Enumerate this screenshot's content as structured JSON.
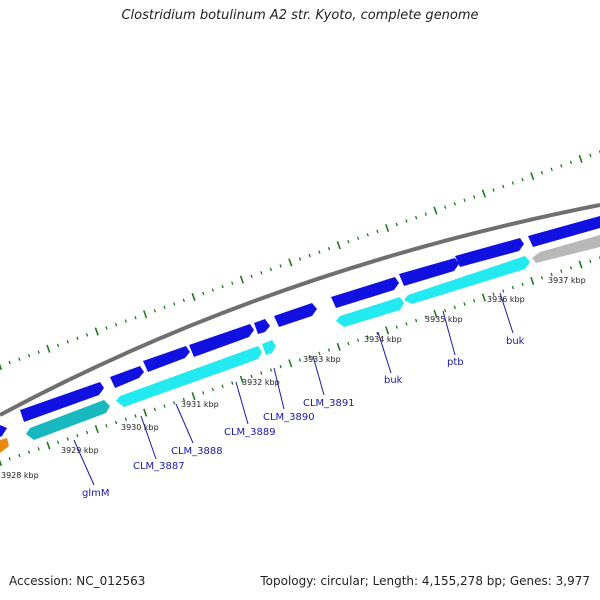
{
  "title": "Clostridium botulinum A2 str. Kyoto, complete genome",
  "footer": {
    "accession": "Accession: NC_012563",
    "summary": "Topology: circular; Length: 4,155,278 bp; Genes: 3,977"
  },
  "colors": {
    "backbone": "#6f6f6f",
    "forward_gene": "#1010e0",
    "reverse_gene": "#22eaf0",
    "other_gene": "#b8b8b8",
    "rna_gene": "#e88a10",
    "ticks": "#1f7a1f",
    "labels": "#1a1aa8"
  },
  "scale_labels": [
    {
      "kbp": 3928,
      "text": "3928 kbp"
    },
    {
      "kbp": 3929,
      "text": "3929 kbp"
    },
    {
      "kbp": 3930,
      "text": "3930 kbp"
    },
    {
      "kbp": 3931,
      "text": "3931 kbp"
    },
    {
      "kbp": 3932,
      "text": "3932 kbp"
    },
    {
      "kbp": 3933,
      "text": "3933 kbp"
    },
    {
      "kbp": 3934,
      "text": "3934 kbp"
    },
    {
      "kbp": 3935,
      "text": "3935 kbp"
    },
    {
      "kbp": 3936,
      "text": "3936 kbp"
    },
    {
      "kbp": 3937,
      "text": "3937 kbp"
    }
  ],
  "gene_labels": [
    {
      "name": "glmM"
    },
    {
      "name": "CLM_3887"
    },
    {
      "name": "CLM_3888"
    },
    {
      "name": "CLM_3889"
    },
    {
      "name": "CLM_3890"
    },
    {
      "name": "CLM_3891"
    },
    {
      "name": "buk"
    },
    {
      "name": "ptb"
    },
    {
      "name": "buk"
    }
  ]
}
